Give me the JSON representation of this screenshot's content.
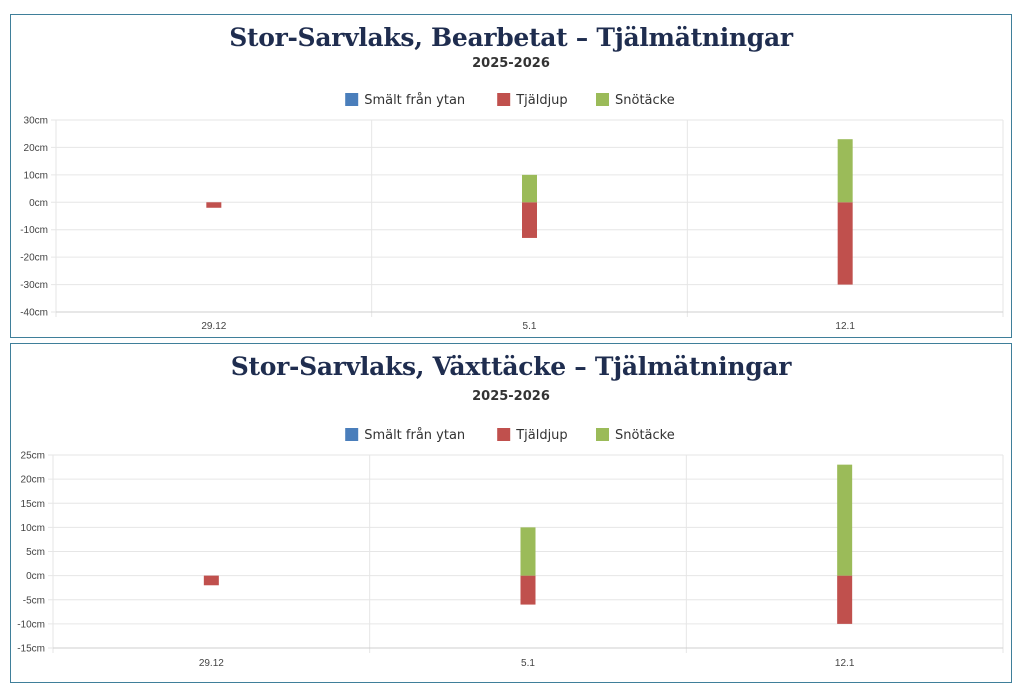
{
  "charts": [
    {
      "title": "Stor-Sarvlaks, Bearbetat – Tjälmätningar",
      "subtitle": "2025-2026"
    },
    {
      "title": "Stor-Sarvlaks, Växttäcke – Tjälmätningar",
      "subtitle": "2025-2026"
    }
  ],
  "colors": {
    "smalt": "#4a7ebb",
    "tjaldjup": "#c0504d",
    "snotacke": "#9bbb59",
    "grid": "#e6e6e6",
    "border": "#3f7f9a"
  },
  "chart_data": [
    {
      "type": "bar",
      "title": "Stor-Sarvlaks, Bearbetat – Tjälmätningar",
      "subtitle": "2025-2026",
      "categories": [
        "29.12",
        "5.1",
        "12.1"
      ],
      "series": [
        {
          "name": "Smält från ytan",
          "color": "#4a7ebb",
          "values": [
            0,
            0,
            0
          ]
        },
        {
          "name": "Tjäldjup",
          "color": "#c0504d",
          "values": [
            -2,
            -13,
            -30
          ]
        },
        {
          "name": "Snötäcke",
          "color": "#9bbb59",
          "values": [
            0,
            10,
            23
          ]
        }
      ],
      "ylim": [
        -40,
        30
      ],
      "yticks": [
        30,
        20,
        10,
        0,
        -10,
        -20,
        -30,
        -40
      ],
      "ytick_labels": [
        "30cm",
        "20cm",
        "10cm",
        "0cm",
        "-10cm",
        "-20cm",
        "-30cm",
        "-40cm"
      ],
      "grid": true,
      "legend": "top"
    },
    {
      "type": "bar",
      "title": "Stor-Sarvlaks, Växttäcke – Tjälmätningar",
      "subtitle": "2025-2026",
      "categories": [
        "29.12",
        "5.1",
        "12.1"
      ],
      "series": [
        {
          "name": "Smält från ytan",
          "color": "#4a7ebb",
          "values": [
            0,
            0,
            0
          ]
        },
        {
          "name": "Tjäldjup",
          "color": "#c0504d",
          "values": [
            -2,
            -6,
            -10
          ]
        },
        {
          "name": "Snötäcke",
          "color": "#9bbb59",
          "values": [
            0,
            10,
            23
          ]
        }
      ],
      "ylim": [
        -15,
        25
      ],
      "yticks": [
        25,
        20,
        15,
        10,
        5,
        0,
        -5,
        -10,
        -15
      ],
      "ytick_labels": [
        "25cm",
        "20cm",
        "15cm",
        "10cm",
        "5cm",
        "0cm",
        "-5cm",
        "-10cm",
        "-15cm"
      ],
      "grid": true,
      "legend": "top"
    }
  ]
}
